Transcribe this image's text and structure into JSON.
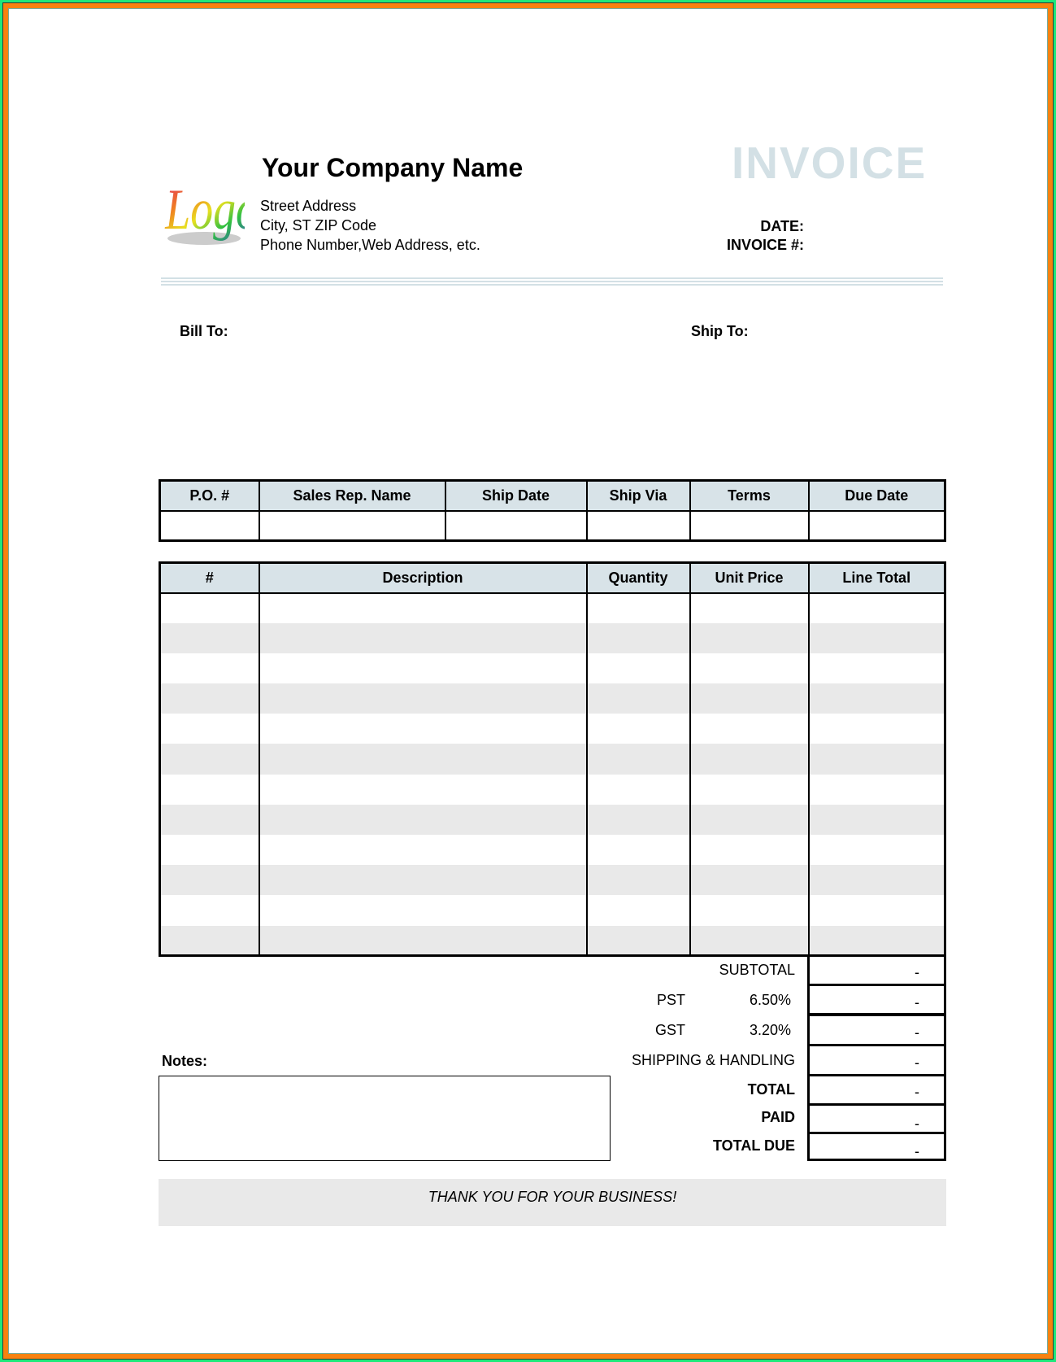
{
  "header": {
    "logo_text": "Logo",
    "company_name": "Your Company Name",
    "address_lines": [
      "Street Address",
      "City, ST  ZIP Code",
      "Phone Number,Web Address, etc."
    ],
    "title": "INVOICE",
    "date_label": "DATE:",
    "invoice_no_label": "INVOICE #:"
  },
  "parties": {
    "bill_to": "Bill To:",
    "ship_to": "Ship To:"
  },
  "order_table": {
    "headers": [
      "P.O. #",
      "Sales Rep. Name",
      "Ship Date",
      "Ship Via",
      "Terms",
      "Due Date"
    ]
  },
  "items_table": {
    "headers": [
      "#",
      "Description",
      "Quantity",
      "Unit Price",
      "Line Total"
    ],
    "row_count": 12
  },
  "totals": {
    "subtotal": {
      "label": "SUBTOTAL",
      "value": "-"
    },
    "pst": {
      "label": "PST",
      "rate": "6.50%",
      "value": "-"
    },
    "gst": {
      "label": "GST",
      "rate": "3.20%",
      "value": "-"
    },
    "shipping": {
      "label": "SHIPPING & HANDLING",
      "value": "-"
    },
    "total": {
      "label": "TOTAL",
      "value": "-"
    },
    "paid": {
      "label": "PAID",
      "value": "-"
    },
    "total_due": {
      "label": "TOTAL DUE",
      "value": "-"
    }
  },
  "notes": {
    "label": "Notes:"
  },
  "footer": {
    "thanks": "THANK YOU FOR YOUR BUSINESS!"
  },
  "colors": {
    "header_bg": "#d8e3e8",
    "title": "#d3e0e5",
    "stripe": "#e9e9e9",
    "border_green": "#1ee87a",
    "border_orange": "#f7820f"
  }
}
